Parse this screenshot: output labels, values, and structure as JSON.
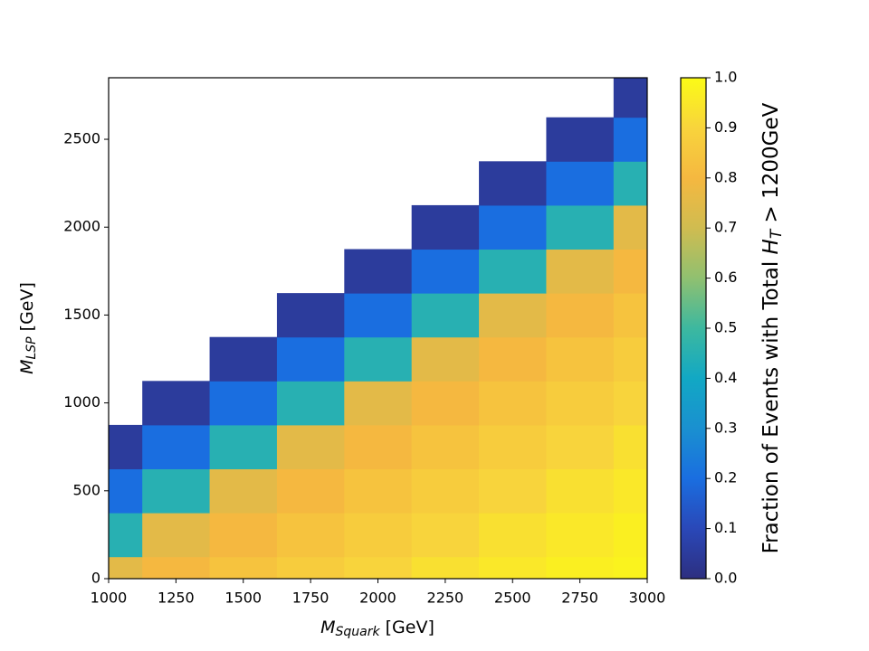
{
  "chart_data": {
    "type": "heatmap",
    "xlabel": [
      "M",
      "Squark",
      " [GeV]"
    ],
    "ylabel": [
      "M",
      "LSP",
      " [GeV]"
    ],
    "colorbar_label": [
      "Fraction of Events with Total ",
      "H",
      "T",
      " > 1200GeV"
    ],
    "x": [
      1000,
      1250,
      1500,
      1750,
      2000,
      2250,
      2500,
      2750,
      3000
    ],
    "y": [
      0,
      250,
      500,
      750,
      1000,
      1250,
      1500,
      1750,
      2000,
      2250,
      2500,
      2750
    ],
    "z": [
      [
        0.75,
        0.8,
        0.84,
        0.87,
        0.9,
        0.93,
        0.95,
        0.97,
        0.98
      ],
      [
        0.45,
        0.75,
        0.8,
        0.84,
        0.87,
        0.9,
        0.93,
        0.95,
        0.97
      ],
      [
        0.2,
        0.45,
        0.75,
        0.8,
        0.84,
        0.87,
        0.9,
        0.93,
        0.95
      ],
      [
        0.05,
        0.2,
        0.45,
        0.75,
        0.8,
        0.84,
        0.87,
        0.9,
        0.93
      ],
      [
        null,
        0.05,
        0.2,
        0.45,
        0.75,
        0.8,
        0.84,
        0.87,
        0.9
      ],
      [
        null,
        null,
        0.05,
        0.2,
        0.45,
        0.75,
        0.8,
        0.84,
        0.87
      ],
      [
        null,
        null,
        null,
        0.05,
        0.2,
        0.45,
        0.75,
        0.8,
        0.84
      ],
      [
        null,
        null,
        null,
        null,
        0.05,
        0.2,
        0.45,
        0.75,
        0.8
      ],
      [
        null,
        null,
        null,
        null,
        null,
        0.05,
        0.2,
        0.45,
        0.75
      ],
      [
        null,
        null,
        null,
        null,
        null,
        null,
        0.05,
        0.2,
        0.45
      ],
      [
        null,
        null,
        null,
        null,
        null,
        null,
        null,
        0.05,
        0.2
      ],
      [
        null,
        null,
        null,
        null,
        null,
        null,
        null,
        null,
        0.05
      ]
    ],
    "xlim": [
      1000,
      3000
    ],
    "xticks": [
      1000,
      1250,
      1500,
      1750,
      2000,
      2250,
      2500,
      2750,
      3000
    ],
    "ylim": [
      0,
      2850
    ],
    "yticks": [
      0,
      500,
      1000,
      1500,
      2000,
      2500
    ],
    "clim": [
      0,
      1
    ],
    "cticks": [
      {
        "value": 0,
        "label": "0.0"
      },
      0.1,
      0.2,
      0.3,
      0.4,
      0.5,
      0.6,
      0.7,
      0.8,
      0.9,
      {
        "value": 1,
        "label": "1.0"
      }
    ],
    "colormap": [
      "#2d2f80",
      "#2a48b8",
      "#1a6ee0",
      "#1a90d0",
      "#12a8c4",
      "#3db89f",
      "#90c070",
      "#d0bc50",
      "#f5b840",
      "#f8d43c",
      "#fbfb16"
    ]
  }
}
